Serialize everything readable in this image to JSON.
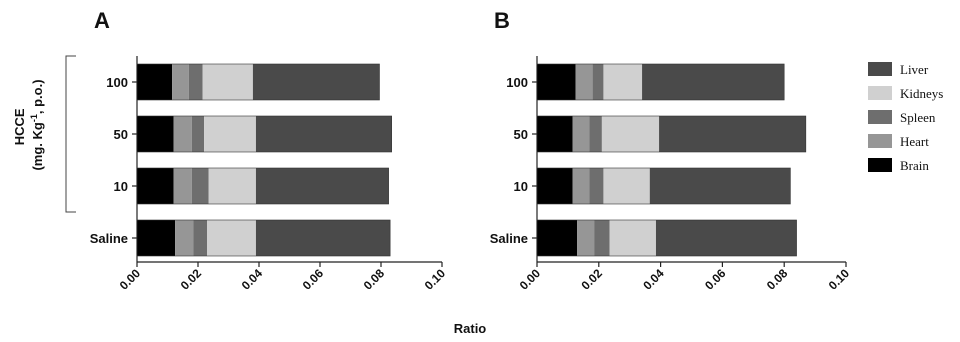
{
  "figure": {
    "xlabel": "Ratio",
    "group_label_line1": "HCCE",
    "group_label_line2_prefix": "(mg. Kg",
    "group_label_line2_sup": "-1",
    "group_label_line2_suffix": ", p.o.)"
  },
  "legend": [
    {
      "name": "Liver",
      "color": "#4a4a4a"
    },
    {
      "name": "Kidneys",
      "color": "#d0d0d0"
    },
    {
      "name": "Spleen",
      "color": "#6e6e6e"
    },
    {
      "name": "Heart",
      "color": "#969696"
    },
    {
      "name": "Brain",
      "color": "#000000"
    }
  ],
  "chart_data": [
    {
      "type": "bar",
      "stacked": true,
      "orientation": "horizontal",
      "panel": "A",
      "title": "",
      "xlabel": "Ratio",
      "ylabel": "",
      "xlim": [
        0,
        0.1
      ],
      "xticks": [
        "0.00",
        "0.02",
        "0.04",
        "0.06",
        "0.08",
        "0.10"
      ],
      "categories": [
        "100",
        "50",
        "10",
        "Saline"
      ],
      "series": [
        {
          "name": "Brain",
          "color": "#000000",
          "values": [
            0.0115,
            0.012,
            0.012,
            0.0125
          ]
        },
        {
          "name": "Heart",
          "color": "#969696",
          "values": [
            0.0055,
            0.006,
            0.006,
            0.006
          ]
        },
        {
          "name": "Spleen",
          "color": "#6e6e6e",
          "values": [
            0.0045,
            0.004,
            0.0055,
            0.0045
          ]
        },
        {
          "name": "Kidneys",
          "color": "#d0d0d0",
          "values": [
            0.0165,
            0.017,
            0.0155,
            0.016
          ]
        },
        {
          "name": "Liver",
          "color": "#4a4a4a",
          "values": [
            0.0415,
            0.0445,
            0.0435,
            0.044
          ]
        }
      ]
    },
    {
      "type": "bar",
      "stacked": true,
      "orientation": "horizontal",
      "panel": "B",
      "title": "",
      "xlabel": "Ratio",
      "ylabel": "",
      "xlim": [
        0,
        0.1
      ],
      "xticks": [
        "0.00",
        "0.02",
        "0.04",
        "0.06",
        "0.08",
        "0.10"
      ],
      "categories": [
        "100",
        "50",
        "10",
        "Saline"
      ],
      "series": [
        {
          "name": "Brain",
          "color": "#000000",
          "values": [
            0.0125,
            0.0115,
            0.0115,
            0.013
          ]
        },
        {
          "name": "Heart",
          "color": "#969696",
          "values": [
            0.0055,
            0.0055,
            0.0055,
            0.0055
          ]
        },
        {
          "name": "Spleen",
          "color": "#6e6e6e",
          "values": [
            0.0035,
            0.004,
            0.0045,
            0.005
          ]
        },
        {
          "name": "Kidneys",
          "color": "#d0d0d0",
          "values": [
            0.0125,
            0.0185,
            0.015,
            0.015
          ]
        },
        {
          "name": "Liver",
          "color": "#4a4a4a",
          "values": [
            0.046,
            0.0475,
            0.0455,
            0.0455
          ]
        }
      ]
    }
  ]
}
